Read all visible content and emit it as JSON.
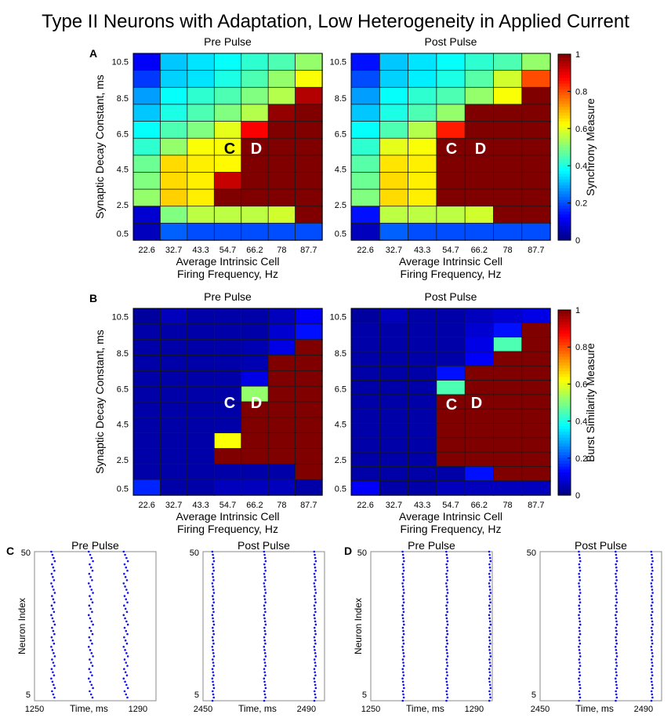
{
  "figure_title": "Type II Neurons with Adaptation, Low Heterogeneity in Applied Current",
  "heatmap_common": {
    "x_ticks": [
      "22.6",
      "32.7",
      "43.3",
      "54.7",
      "66.2",
      "78",
      "87.7"
    ],
    "y_ticks": [
      "10.5",
      "8.5",
      "6.5",
      "4.5",
      "2.5",
      "0.5"
    ],
    "xlabel_line1": "Average Intrinsic Cell",
    "xlabel_line2": "Firing Frequency, Hz",
    "ylabel": "Synaptic Decay Constant, ms",
    "colorbar_ticks": [
      "1",
      "0.8",
      "0.6",
      "0.4",
      "0.2",
      "0"
    ]
  },
  "chart_data": [
    {
      "id": "A-pre",
      "panel": "A",
      "type": "heatmap",
      "title": "Pre Pulse",
      "colorbar_label": "Synchrony Measure",
      "zlim": [
        0,
        1
      ],
      "rows_top_to_bottom": [
        [
          0.12,
          0.32,
          0.35,
          0.38,
          0.42,
          0.45,
          0.52
        ],
        [
          0.18,
          0.33,
          0.35,
          0.4,
          0.45,
          0.52,
          0.62
        ],
        [
          0.28,
          0.38,
          0.42,
          0.45,
          0.5,
          0.55,
          0.95
        ],
        [
          0.32,
          0.4,
          0.45,
          0.5,
          0.55,
          0.98,
          1.0
        ],
        [
          0.38,
          0.45,
          0.5,
          0.6,
          0.88,
          1.0,
          1.0
        ],
        [
          0.42,
          0.52,
          0.62,
          0.62,
          1.0,
          1.0,
          1.0
        ],
        [
          0.48,
          0.66,
          0.64,
          0.63,
          1.0,
          1.0,
          1.0
        ],
        [
          0.5,
          0.66,
          0.64,
          0.93,
          1.0,
          1.0,
          1.0
        ],
        [
          0.52,
          0.67,
          0.64,
          1.0,
          1.0,
          1.0,
          1.0
        ],
        [
          0.08,
          0.5,
          0.56,
          0.56,
          0.56,
          0.58,
          1.0
        ],
        [
          0.06,
          0.22,
          0.2,
          0.2,
          0.2,
          0.2,
          0.2
        ]
      ]
    },
    {
      "id": "A-post",
      "panel": "A",
      "type": "heatmap",
      "title": "Post Pulse",
      "colorbar_label": "Synchrony Measure",
      "zlim": [
        0,
        1
      ],
      "rows_top_to_bottom": [
        [
          0.14,
          0.32,
          0.35,
          0.38,
          0.42,
          0.45,
          0.52
        ],
        [
          0.2,
          0.33,
          0.36,
          0.4,
          0.46,
          0.58,
          0.8
        ],
        [
          0.28,
          0.38,
          0.42,
          0.45,
          0.52,
          0.62,
          1.0
        ],
        [
          0.32,
          0.4,
          0.45,
          0.52,
          1.0,
          1.0,
          1.0
        ],
        [
          0.38,
          0.45,
          0.55,
          0.85,
          1.0,
          1.0,
          1.0
        ],
        [
          0.42,
          0.6,
          0.62,
          1.0,
          1.0,
          1.0,
          1.0
        ],
        [
          0.46,
          0.65,
          0.64,
          1.0,
          1.0,
          1.0,
          1.0
        ],
        [
          0.48,
          0.66,
          0.64,
          1.0,
          1.0,
          1.0,
          1.0
        ],
        [
          0.5,
          0.66,
          0.64,
          1.0,
          1.0,
          1.0,
          1.0
        ],
        [
          0.14,
          0.56,
          0.56,
          0.56,
          0.58,
          1.0,
          1.0
        ],
        [
          0.06,
          0.22,
          0.2,
          0.2,
          0.2,
          0.2,
          0.2
        ]
      ]
    },
    {
      "id": "B-pre",
      "panel": "B",
      "type": "heatmap",
      "title": "Pre Pulse",
      "colorbar_label": "Burst Similarity Measure",
      "zlim": [
        0,
        1
      ],
      "rows_top_to_bottom": [
        [
          0.03,
          0.06,
          0.04,
          0.04,
          0.04,
          0.06,
          0.12
        ],
        [
          0.04,
          0.04,
          0.04,
          0.04,
          0.04,
          0.08,
          0.14
        ],
        [
          0.04,
          0.04,
          0.04,
          0.04,
          0.05,
          0.1,
          1.0
        ],
        [
          0.04,
          0.04,
          0.04,
          0.04,
          0.05,
          1.0,
          1.0
        ],
        [
          0.04,
          0.04,
          0.04,
          0.04,
          0.1,
          1.0,
          1.0
        ],
        [
          0.04,
          0.04,
          0.04,
          0.04,
          0.52,
          1.0,
          1.0
        ],
        [
          0.04,
          0.04,
          0.04,
          0.04,
          1.0,
          1.0,
          1.0
        ],
        [
          0.04,
          0.04,
          0.04,
          0.04,
          1.0,
          1.0,
          1.0
        ],
        [
          0.04,
          0.04,
          0.04,
          0.62,
          1.0,
          1.0,
          1.0
        ],
        [
          0.04,
          0.04,
          0.04,
          1.0,
          1.0,
          1.0,
          1.0
        ],
        [
          0.04,
          0.04,
          0.04,
          0.04,
          0.04,
          0.04,
          1.0
        ],
        [
          0.16,
          0.04,
          0.04,
          0.06,
          0.06,
          0.06,
          0.04
        ]
      ]
    },
    {
      "id": "B-post",
      "panel": "B",
      "type": "heatmap",
      "title": "Post Pulse",
      "colorbar_label": "Burst Similarity Measure",
      "zlim": [
        0,
        1
      ],
      "rows_top_to_bottom": [
        [
          0.03,
          0.06,
          0.04,
          0.04,
          0.06,
          0.08,
          0.1
        ],
        [
          0.04,
          0.04,
          0.04,
          0.04,
          0.08,
          0.14,
          1.0
        ],
        [
          0.04,
          0.04,
          0.04,
          0.04,
          0.1,
          0.45,
          1.0
        ],
        [
          0.04,
          0.04,
          0.04,
          0.04,
          0.12,
          1.0,
          1.0
        ],
        [
          0.04,
          0.04,
          0.04,
          0.14,
          1.0,
          1.0,
          1.0
        ],
        [
          0.04,
          0.04,
          0.04,
          0.45,
          1.0,
          1.0,
          1.0
        ],
        [
          0.04,
          0.04,
          0.04,
          1.0,
          1.0,
          1.0,
          1.0
        ],
        [
          0.04,
          0.04,
          0.04,
          1.0,
          1.0,
          1.0,
          1.0
        ],
        [
          0.04,
          0.04,
          0.04,
          1.0,
          1.0,
          1.0,
          1.0
        ],
        [
          0.04,
          0.04,
          0.04,
          1.0,
          1.0,
          1.0,
          1.0
        ],
        [
          0.04,
          0.04,
          0.04,
          1.0,
          1.0,
          1.0,
          1.0
        ],
        [
          0.04,
          0.04,
          0.04,
          0.04,
          0.14,
          1.0,
          1.0
        ],
        [
          0.12,
          0.04,
          0.04,
          0.06,
          0.06,
          0.06,
          0.06
        ]
      ]
    },
    {
      "id": "C-pre",
      "panel": "C",
      "type": "scatter",
      "title": "Pre Pulse",
      "xlabel": "Time, ms",
      "ylabel": "Neuron Index",
      "xlim": [
        1250,
        1297
      ],
      "ylim": [
        3,
        50
      ],
      "x_tick_labels": [
        "1250",
        "1290"
      ],
      "y_tick_labels": [
        "50",
        "5"
      ],
      "bursts": [
        {
          "t_from": 1256.5,
          "t_to": 1258.0,
          "from_neuron": 4,
          "to_neuron": 50
        },
        {
          "t_from": 1271.0,
          "t_to": 1272.8,
          "from_neuron": 4,
          "to_neuron": 50
        },
        {
          "t_from": 1284.5,
          "t_to": 1286.3,
          "from_neuron": 4,
          "to_neuron": 50
        }
      ]
    },
    {
      "id": "C-post",
      "panel": "C",
      "type": "scatter",
      "title": "Post Pulse",
      "xlabel": "Time, ms",
      "ylabel": "",
      "xlim": [
        2450,
        2497
      ],
      "ylim": [
        3,
        50
      ],
      "x_tick_labels": [
        "2450",
        "2490"
      ],
      "y_tick_labels": [
        "50",
        "5"
      ],
      "bursts": [
        {
          "t_from": 2453.6,
          "t_to": 2454.3,
          "from_neuron": 1,
          "to_neuron": 50
        },
        {
          "t_from": 2473.6,
          "t_to": 2474.3,
          "from_neuron": 1,
          "to_neuron": 50
        },
        {
          "t_from": 2493.0,
          "t_to": 2493.7,
          "from_neuron": 1,
          "to_neuron": 50
        }
      ]
    },
    {
      "id": "D-pre",
      "panel": "D",
      "type": "scatter",
      "title": "Pre Pulse",
      "xlabel": "Time, ms",
      "ylabel": "Neuron Index",
      "xlim": [
        1250,
        1297
      ],
      "ylim": [
        3,
        50
      ],
      "x_tick_labels": [
        "1250",
        "1290"
      ],
      "y_tick_labels": [
        "50",
        "5"
      ],
      "bursts": [
        {
          "t_from": 1262.3,
          "t_to": 1262.9,
          "from_neuron": 1,
          "to_neuron": 50
        },
        {
          "t_from": 1279.2,
          "t_to": 1279.8,
          "from_neuron": 1,
          "to_neuron": 50
        },
        {
          "t_from": 1295.8,
          "t_to": 1296.4,
          "from_neuron": 1,
          "to_neuron": 50
        }
      ]
    },
    {
      "id": "D-post",
      "panel": "D",
      "type": "scatter",
      "title": "Post Pulse",
      "xlabel": "Time, ms",
      "ylabel": "",
      "xlim": [
        2450,
        2497
      ],
      "ylim": [
        3,
        50
      ],
      "x_tick_labels": [
        "2450",
        "2490"
      ],
      "y_tick_labels": [
        "50",
        "5"
      ],
      "bursts": [
        {
          "t_from": 2465.0,
          "t_to": 2465.6,
          "from_neuron": 1,
          "to_neuron": 50
        },
        {
          "t_from": 2479.2,
          "t_to": 2479.8,
          "from_neuron": 1,
          "to_neuron": 50
        },
        {
          "t_from": 2493.0,
          "t_to": 2493.6,
          "from_neuron": 1,
          "to_neuron": 50
        }
      ]
    }
  ],
  "annotations": {
    "heatmap_labels": [
      "C",
      "D"
    ],
    "panel_letters": {
      "A": "A",
      "B": "B",
      "C": "C",
      "D": "D"
    }
  }
}
